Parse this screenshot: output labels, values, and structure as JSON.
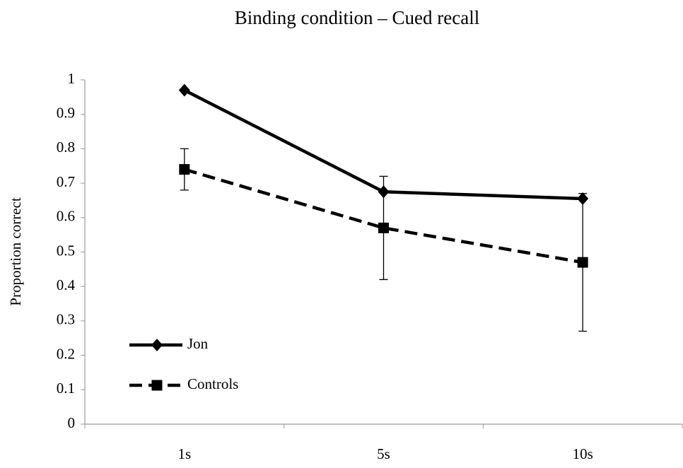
{
  "chart_data": {
    "type": "line",
    "title": "Binding condition – Cued recall",
    "y_label": "Proportion correct",
    "categories": [
      "1s",
      "5s",
      "10s"
    ],
    "series": [
      {
        "name": "Jon",
        "color": "#000000",
        "line_style": "solid",
        "marker": "diamond",
        "values": [
          0.97,
          0.675,
          0.655
        ]
      },
      {
        "name": "Controls",
        "color": "#000000",
        "line_style": "dashed",
        "marker": "square",
        "values": [
          0.74,
          0.57,
          0.47
        ],
        "errors": [
          0.06,
          0.15,
          0.2
        ]
      }
    ],
    "ylim": [
      0,
      1
    ],
    "yticks": [
      0,
      0.1,
      0.2,
      0.3,
      0.4,
      0.5,
      0.6,
      0.7,
      0.8,
      0.9,
      1
    ],
    "grid": false,
    "legend": "lower left"
  }
}
